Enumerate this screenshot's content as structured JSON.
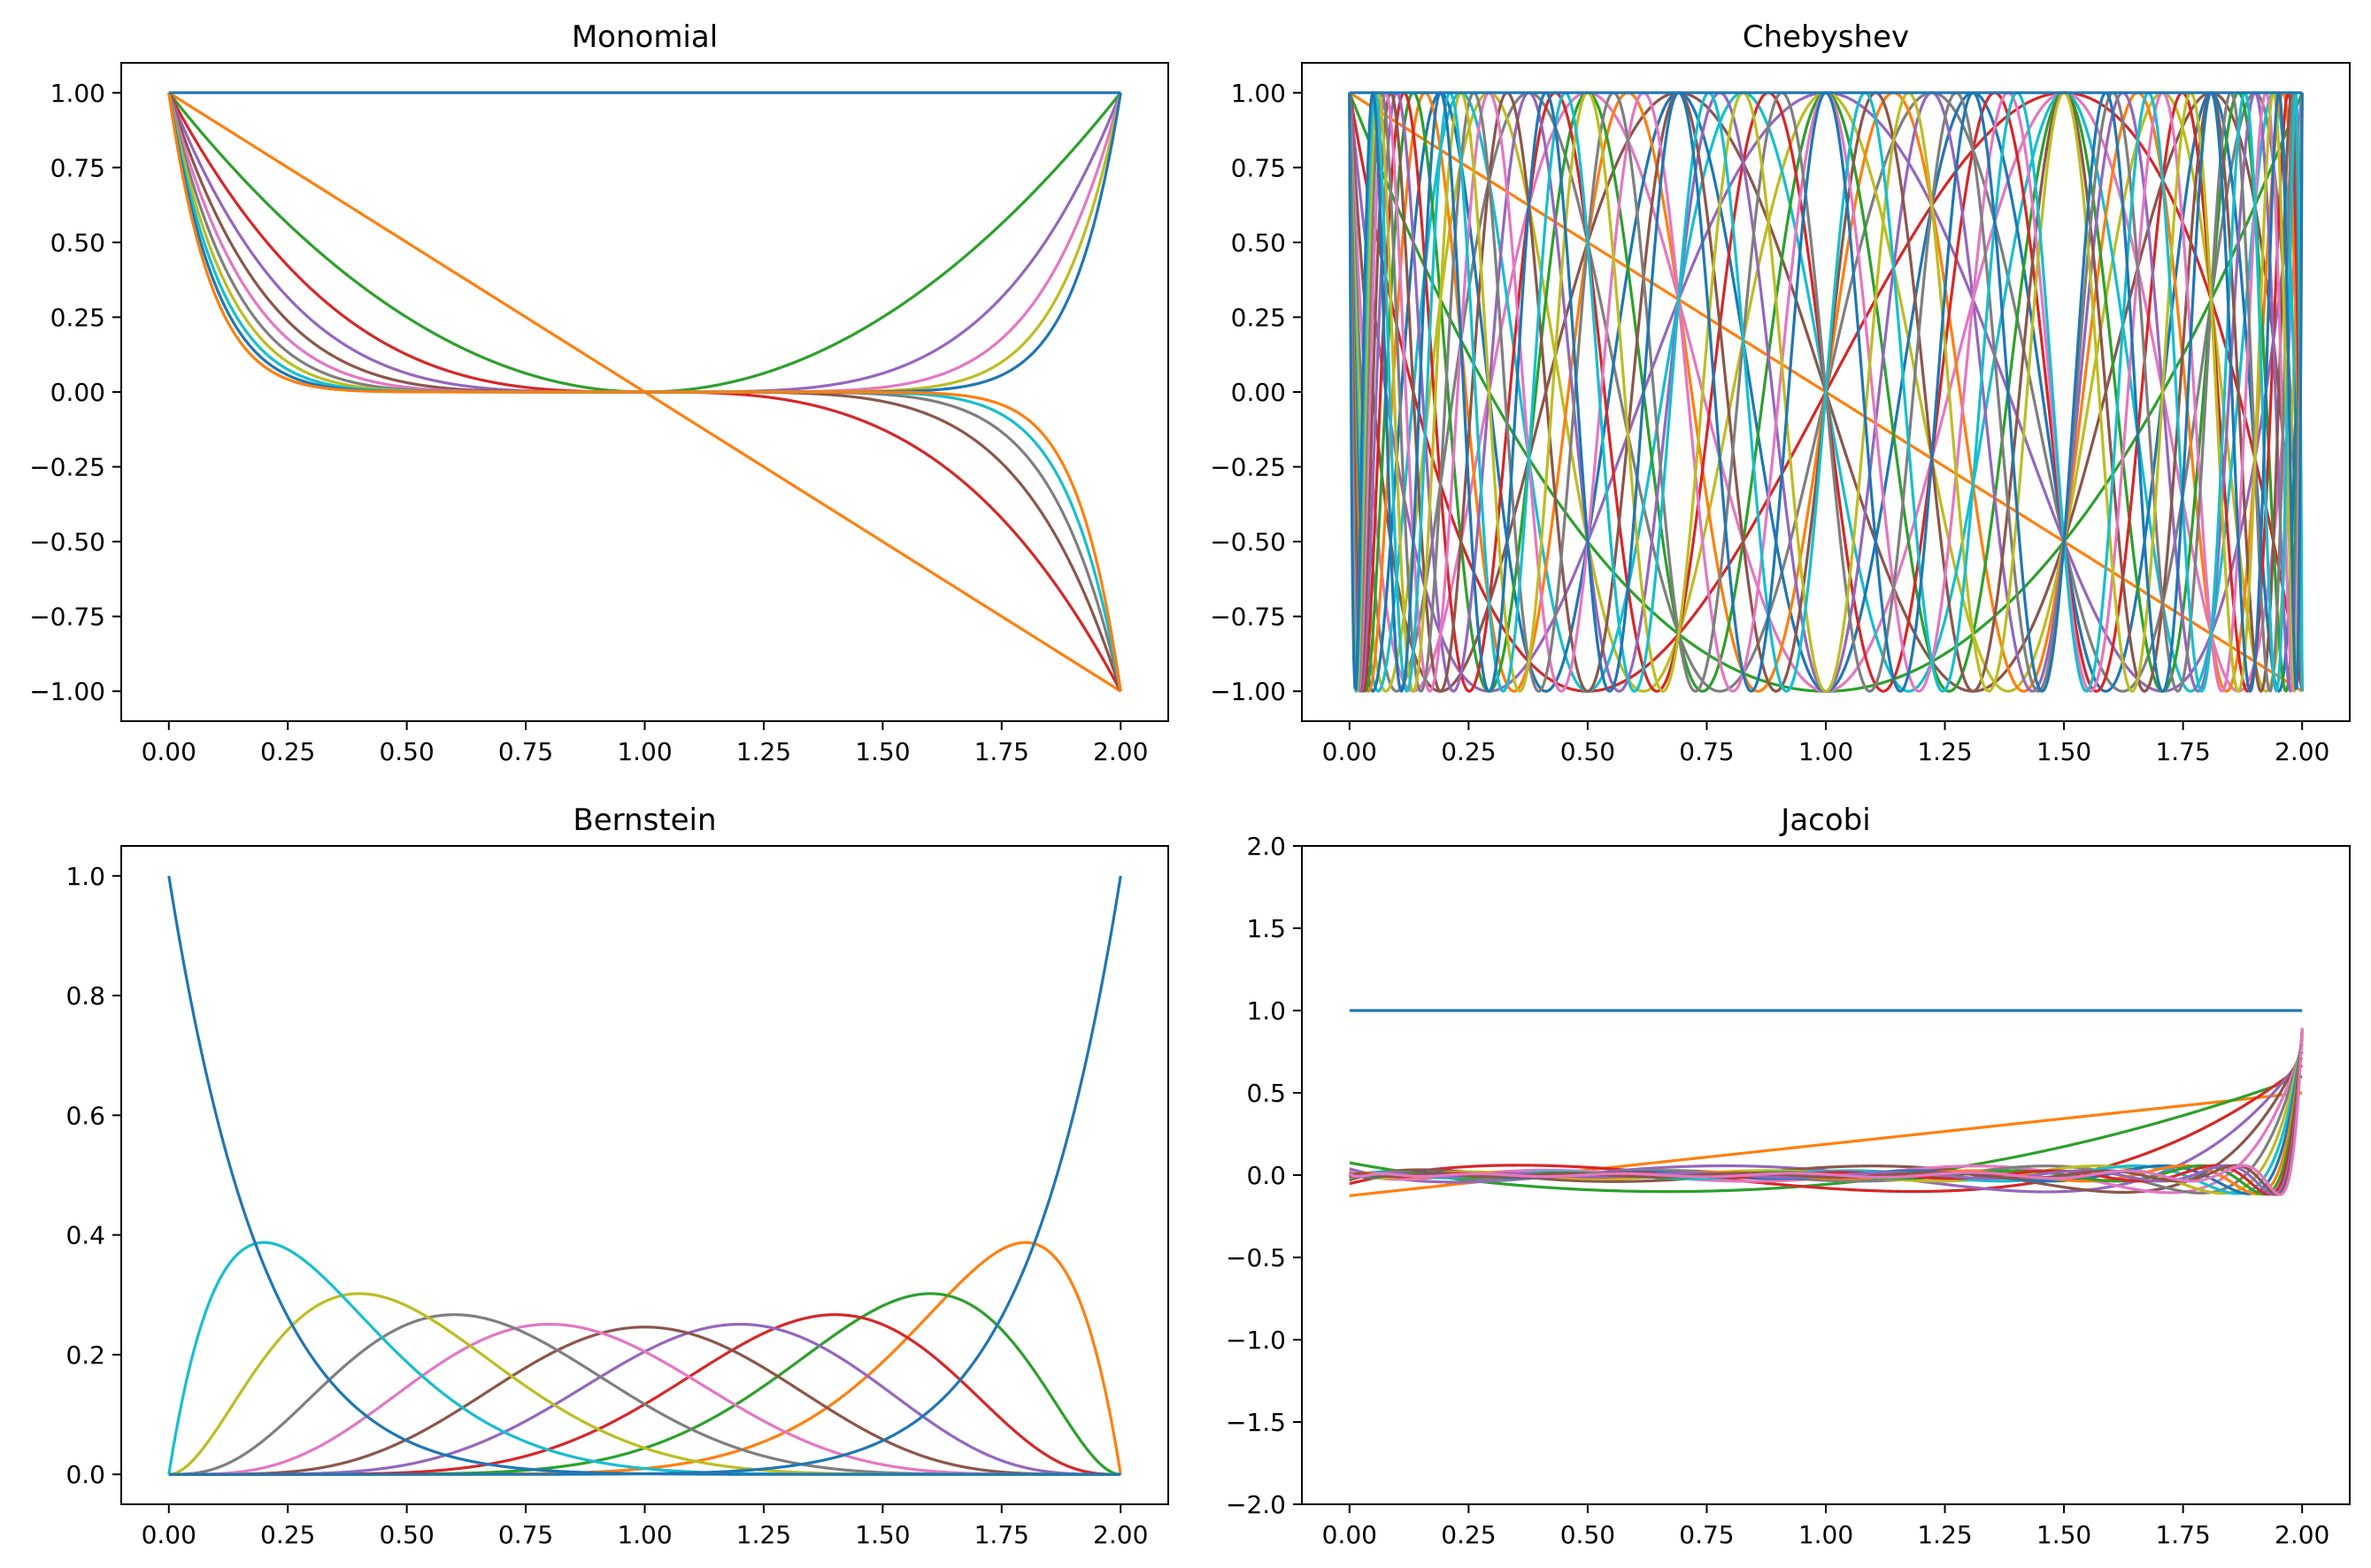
{
  "figure": {
    "palette": [
      "#1f77b4",
      "#ff7f0e",
      "#2ca02c",
      "#d62728",
      "#9467bd",
      "#8c564b",
      "#e377c2",
      "#7f7f7f",
      "#bcbd22",
      "#17becf"
    ]
  },
  "chart_data": [
    {
      "type": "line",
      "title": "Monomial",
      "basis": "monomial",
      "degree": 11,
      "domain": [
        0,
        2
      ],
      "xlim": [
        -0.1,
        2.1
      ],
      "ylim": [
        -1.1,
        1.1
      ],
      "xticks": [
        "0.00",
        "0.25",
        "0.50",
        "0.75",
        "1.00",
        "1.25",
        "1.50",
        "1.75",
        "2.00"
      ],
      "yticks": [
        "-1.00",
        "-0.75",
        "-0.50",
        "-0.25",
        "0.00",
        "0.25",
        "0.50",
        "0.75",
        "1.00"
      ],
      "grid": false,
      "legend": "none"
    },
    {
      "type": "line",
      "title": "Chebyshev",
      "basis": "chebyshev",
      "degree": 20,
      "domain": [
        0,
        2
      ],
      "xlim": [
        -0.1,
        2.1
      ],
      "ylim": [
        -1.1,
        1.1
      ],
      "xticks": [
        "0.00",
        "0.25",
        "0.50",
        "0.75",
        "1.00",
        "1.25",
        "1.50",
        "1.75",
        "2.00"
      ],
      "yticks": [
        "-1.00",
        "-0.75",
        "-0.50",
        "-0.25",
        "0.00",
        "0.25",
        "0.50",
        "0.75",
        "1.00"
      ],
      "grid": false,
      "legend": "none"
    },
    {
      "type": "line",
      "title": "Bernstein",
      "basis": "bernstein",
      "degree": 10,
      "domain": [
        0,
        2
      ],
      "xlim": [
        -0.1,
        2.1
      ],
      "ylim": [
        -0.05,
        1.05
      ],
      "xticks": [
        "0.00",
        "0.25",
        "0.50",
        "0.75",
        "1.00",
        "1.25",
        "1.50",
        "1.75",
        "2.00"
      ],
      "yticks": [
        "0.0",
        "0.2",
        "0.4",
        "0.6",
        "0.8",
        "1.0"
      ],
      "grid": false,
      "legend": "none"
    },
    {
      "type": "line",
      "title": "Jacobi",
      "basis": "jacobi",
      "degree": 16,
      "domain": [
        0,
        2
      ],
      "xlim": [
        -0.1,
        2.1
      ],
      "ylim": [
        -2.0,
        2.0
      ],
      "xticks": [
        "0.00",
        "0.25",
        "0.50",
        "0.75",
        "1.00",
        "1.25",
        "1.50",
        "1.75",
        "2.00"
      ],
      "yticks": [
        "-2.0",
        "-1.5",
        "-1.0",
        "-0.5",
        "0.0",
        "0.5",
        "1.0",
        "1.5",
        "2.0"
      ],
      "grid": false,
      "legend": "none"
    }
  ]
}
